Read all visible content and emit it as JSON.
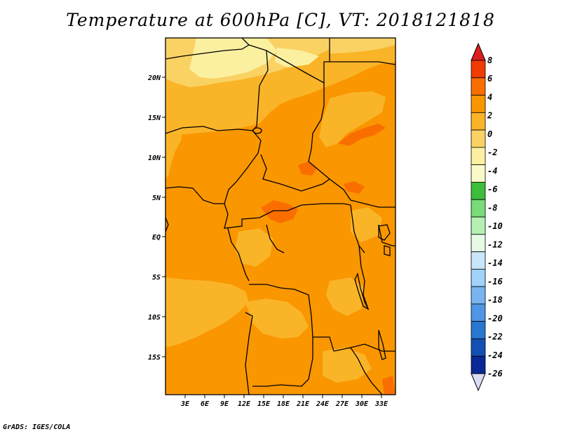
{
  "title": "Temperature at 600hPa [C], VT: 2018121818",
  "credit": "GrADS: IGES/COLA",
  "map": {
    "lon_range": [
      0,
      34.5
    ],
    "lat_range": [
      -20,
      24.5
    ],
    "x_ticks": [
      "3E",
      "6E",
      "9E",
      "12E",
      "15E",
      "18E",
      "21E",
      "24E",
      "27E",
      "30E",
      "33E"
    ],
    "y_ticks": [
      "20N",
      "15N",
      "10N",
      "5N",
      "EQ",
      "5S",
      "10S",
      "15S"
    ]
  },
  "colorbar": {
    "levels": [
      "8",
      "6",
      "4",
      "2",
      "0",
      "-2",
      "-4",
      "-6",
      "-8",
      "-10",
      "-12",
      "-14",
      "-16",
      "-18",
      "-20",
      "-22",
      "-24",
      "-26"
    ],
    "colors": [
      "#f03c00",
      "#fa6e00",
      "#fa9600",
      "#fab428",
      "#fad264",
      "#faf0a0",
      "#fafac8",
      "#3cbe3c",
      "#78dc78",
      "#b4f0b4",
      "#e6fae6",
      "#c8e6fa",
      "#a0d2fa",
      "#78b4f0",
      "#5096e6",
      "#2878d2",
      "#1450b4",
      "#0a2896"
    ],
    "top_color": "#dc1e1e",
    "bottom_color": "#dcdcf5"
  },
  "chart_data": {
    "type": "heatmap",
    "title": "Temperature at 600hPa [C], VT: 2018121818",
    "xlabel": "",
    "ylabel": "",
    "x_ticks": [
      "3E",
      "6E",
      "9E",
      "12E",
      "15E",
      "18E",
      "21E",
      "24E",
      "27E",
      "30E",
      "33E"
    ],
    "y_ticks": [
      "20N",
      "15N",
      "10N",
      "5N",
      "EQ",
      "5S",
      "10S",
      "15S"
    ],
    "value_range_shown": [
      -2,
      8
    ],
    "colorbar_levels": [
      8,
      6,
      4,
      2,
      0,
      -2,
      -4,
      -6,
      -8,
      -10,
      -12,
      -14,
      -16,
      -18,
      -20,
      -22,
      -24,
      -26
    ]
  }
}
